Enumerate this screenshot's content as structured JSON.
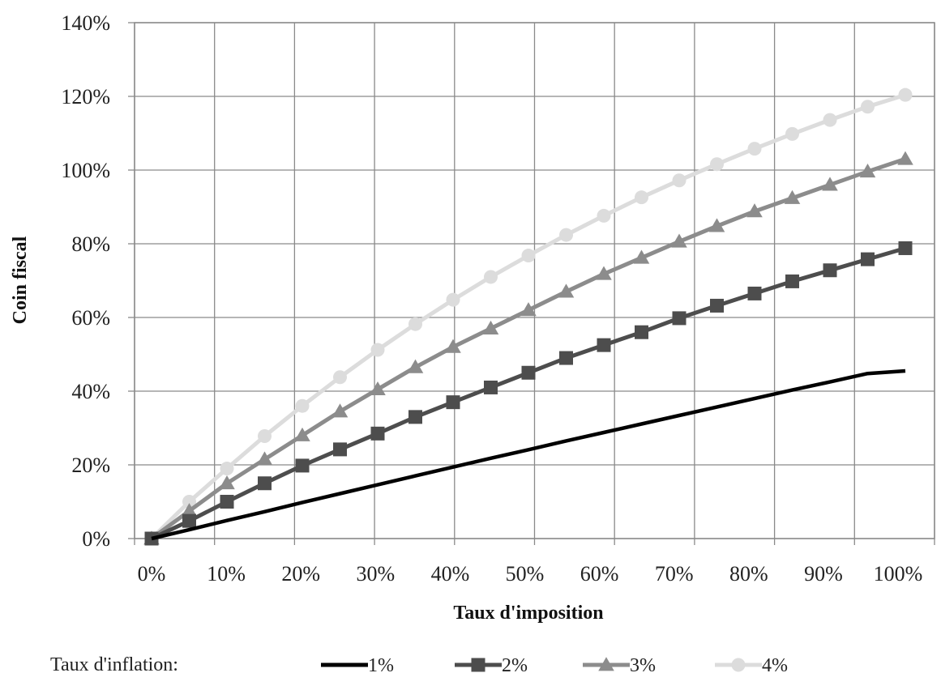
{
  "chart_data": {
    "type": "line",
    "title": "",
    "xlabel": "Taux d'imposition",
    "ylabel": "Coin fiscal",
    "xlim": [
      0,
      100
    ],
    "ylim": [
      0,
      140
    ],
    "x_ticks": [
      "0%",
      "10%",
      "20%",
      "30%",
      "40%",
      "50%",
      "60%",
      "70%",
      "80%",
      "90%",
      "100%"
    ],
    "y_ticks": [
      "0%",
      "20%",
      "40%",
      "60%",
      "80%",
      "100%",
      "120%",
      "140%"
    ],
    "grid": true,
    "legend": {
      "title": "Taux d'inflation:",
      "position": "bottom"
    },
    "x": [
      2.5,
      7.5,
      12.5,
      17.5,
      22.5,
      27.5,
      32.5,
      37.5,
      42.5,
      47.5,
      52.5,
      57.5,
      62.5,
      67.5,
      72.5,
      77.5,
      82.5,
      87.5,
      92.5,
      97.5,
      102.5
    ],
    "series": [
      {
        "name": "1%",
        "color": "#000000",
        "marker": "none",
        "values": [
          0,
          2.4,
          4.9,
          7.3,
          9.8,
          12.2,
          14.6,
          17.0,
          19.4,
          21.8,
          24.1,
          26.5,
          28.8,
          31.1,
          33.4,
          35.7,
          38.0,
          40.3,
          42.5,
          44.8,
          45.5
        ]
      },
      {
        "name": "2%",
        "color": "#4d4d4d",
        "marker": "square",
        "values": [
          0,
          4.8,
          10.0,
          15.0,
          19.8,
          24.2,
          28.5,
          33.0,
          37.0,
          41.0,
          45.0,
          49.0,
          52.5,
          56.0,
          59.8,
          63.2,
          66.5,
          69.8,
          72.8,
          75.8,
          78.8
        ]
      },
      {
        "name": "3%",
        "color": "#8c8c8c",
        "marker": "triangle",
        "values": [
          0,
          7.5,
          15.0,
          21.5,
          28.0,
          34.5,
          40.5,
          46.5,
          52.0,
          57.0,
          62.0,
          67.0,
          71.8,
          76.2,
          80.6,
          84.8,
          88.8,
          92.4,
          96.0,
          99.6,
          103.0
        ]
      },
      {
        "name": "4%",
        "color": "#dcdcdc",
        "marker": "circle",
        "values": [
          0,
          10.0,
          19.0,
          27.8,
          36.0,
          43.8,
          51.2,
          58.2,
          64.8,
          71.0,
          76.8,
          82.4,
          87.6,
          92.6,
          97.2,
          101.6,
          105.8,
          109.8,
          113.6,
          117.2,
          120.4
        ]
      }
    ]
  }
}
